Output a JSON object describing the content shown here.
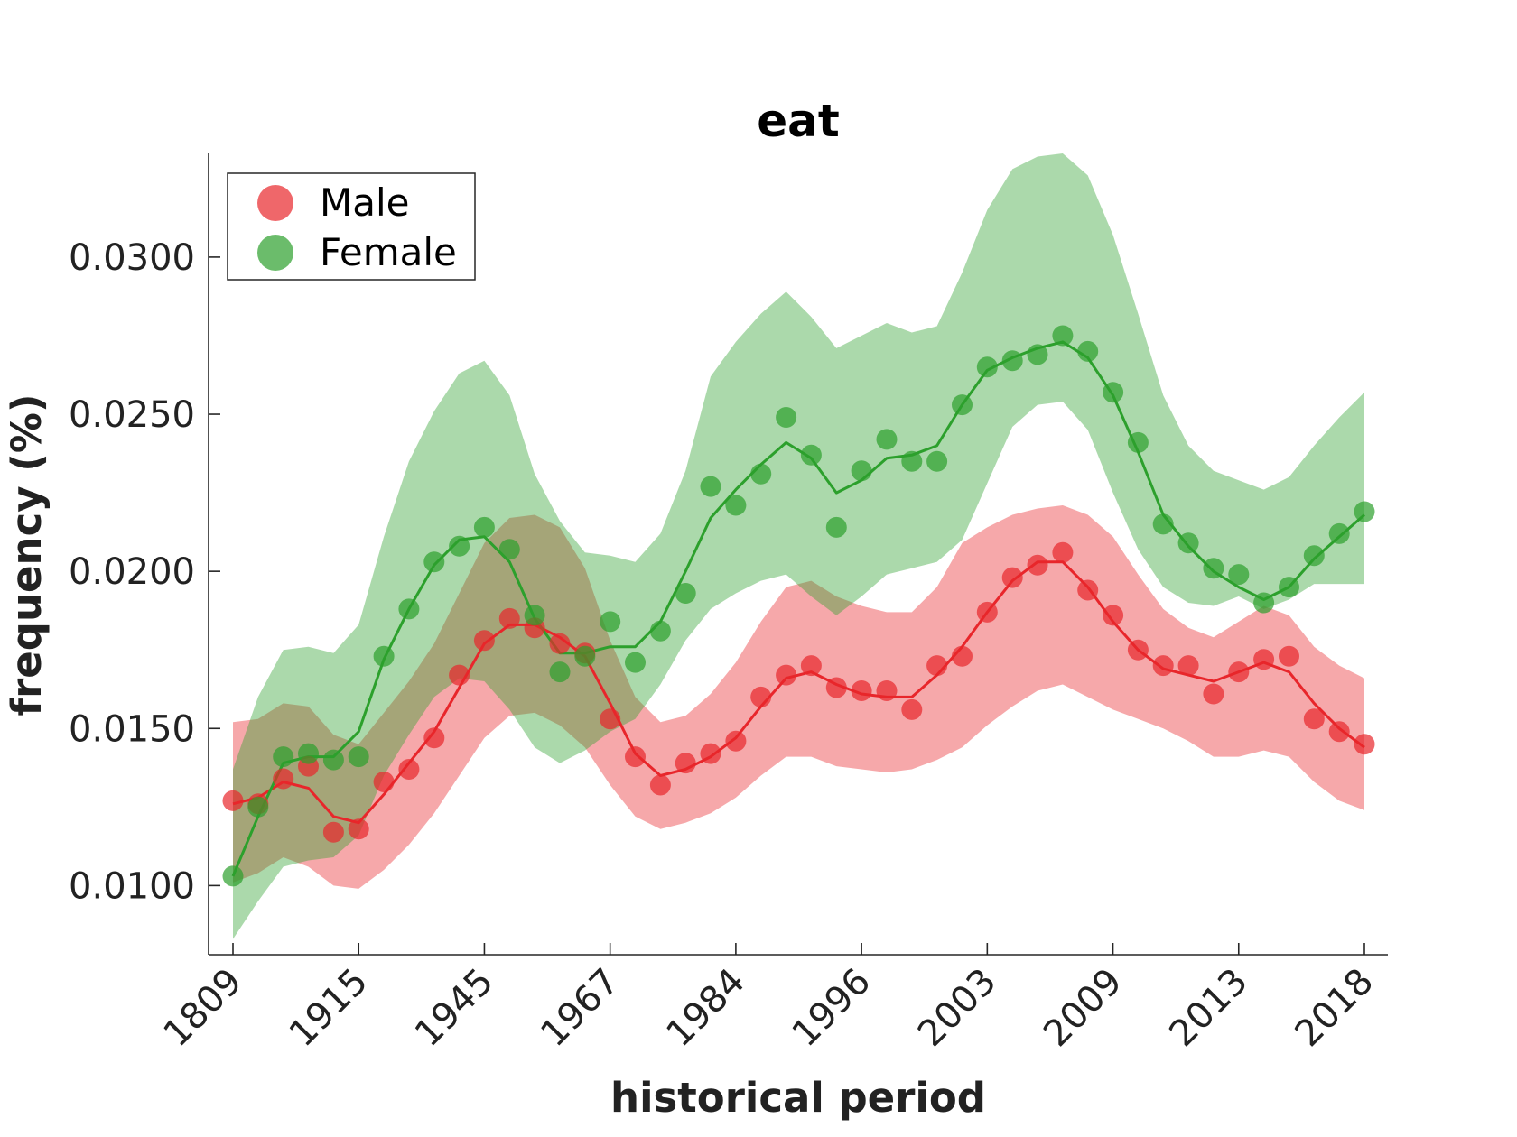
{
  "chart_data": {
    "type": "line",
    "title": "eat",
    "xlabel": "historical period",
    "ylabel": "frequency (%)",
    "x_tick_labels": [
      "1809",
      "1915",
      "1945",
      "1967",
      "1984",
      "1996",
      "2003",
      "2009",
      "2013",
      "2018"
    ],
    "y_tick_labels": [
      "0.0100",
      "0.0150",
      "0.0200",
      "0.0250",
      "0.0300"
    ],
    "y_ticks": [
      0.01,
      0.015,
      0.02,
      0.025,
      0.03
    ],
    "ylim": [
      0.0078,
      0.0333
    ],
    "x_index_range": [
      0,
      45
    ],
    "x_tick_indices": [
      0,
      5,
      10,
      15,
      20,
      25,
      30,
      35,
      40,
      45
    ],
    "legend_position": "top-left",
    "grid": false,
    "series": [
      {
        "name": "Male",
        "color": "#e8262b",
        "points": [
          0.0127,
          0.0126,
          0.0134,
          0.0138,
          0.0117,
          0.0118,
          0.0133,
          0.0137,
          0.0147,
          0.0167,
          0.0178,
          0.0185,
          0.0182,
          0.0177,
          0.0174,
          0.0153,
          0.0141,
          0.0132,
          0.0139,
          0.0142,
          0.0146,
          0.016,
          0.0167,
          0.017,
          0.0163,
          0.0162,
          0.0162,
          0.0156,
          0.017,
          0.0173,
          0.0187,
          0.0198,
          0.0202,
          0.0206,
          0.0194,
          0.0186,
          0.0175,
          0.017,
          0.017,
          0.0161,
          0.0168,
          0.0172,
          0.0173,
          0.0153,
          0.0149,
          0.0145
        ],
        "trend": [
          0.0126,
          0.0128,
          0.0133,
          0.0131,
          0.0122,
          0.012,
          0.0129,
          0.0139,
          0.0149,
          0.0163,
          0.0177,
          0.0183,
          0.0183,
          0.0179,
          0.0173,
          0.0158,
          0.0142,
          0.0135,
          0.0137,
          0.0141,
          0.0147,
          0.0157,
          0.0166,
          0.0168,
          0.0164,
          0.0161,
          0.016,
          0.016,
          0.0167,
          0.0176,
          0.0187,
          0.0197,
          0.0203,
          0.0203,
          0.0195,
          0.0184,
          0.0175,
          0.0169,
          0.0167,
          0.0165,
          0.0168,
          0.0171,
          0.0168,
          0.0158,
          0.015,
          0.0144
        ],
        "upper": [
          0.0152,
          0.0153,
          0.0158,
          0.0157,
          0.0148,
          0.0145,
          0.0155,
          0.0165,
          0.0177,
          0.0193,
          0.0209,
          0.0217,
          0.0218,
          0.0214,
          0.0201,
          0.0178,
          0.016,
          0.0152,
          0.0154,
          0.0161,
          0.0171,
          0.0184,
          0.0195,
          0.0197,
          0.0192,
          0.0189,
          0.0187,
          0.0187,
          0.0195,
          0.0209,
          0.0214,
          0.0218,
          0.022,
          0.0221,
          0.0218,
          0.0211,
          0.0199,
          0.0188,
          0.0182,
          0.0179,
          0.0184,
          0.0189,
          0.0186,
          0.0176,
          0.017,
          0.0166
        ],
        "lower": [
          0.0101,
          0.0104,
          0.0109,
          0.0106,
          0.01,
          0.0099,
          0.0105,
          0.0113,
          0.0123,
          0.0135,
          0.0147,
          0.0154,
          0.0155,
          0.0151,
          0.0144,
          0.0132,
          0.0122,
          0.0118,
          0.012,
          0.0123,
          0.0128,
          0.0135,
          0.0141,
          0.0141,
          0.0138,
          0.0137,
          0.0136,
          0.0137,
          0.014,
          0.0144,
          0.0151,
          0.0157,
          0.0162,
          0.0164,
          0.016,
          0.0156,
          0.0153,
          0.015,
          0.0146,
          0.0141,
          0.0141,
          0.0143,
          0.0141,
          0.0133,
          0.0127,
          0.0124
        ]
      },
      {
        "name": "Female",
        "color": "#2ca02c",
        "points": [
          0.0103,
          0.0125,
          0.0141,
          0.0142,
          0.014,
          0.0141,
          0.0173,
          0.0188,
          0.0203,
          0.0208,
          0.0214,
          0.0207,
          0.0186,
          0.0168,
          0.0173,
          0.0184,
          0.0171,
          0.0181,
          0.0193,
          0.0227,
          0.0221,
          0.0231,
          0.0249,
          0.0237,
          0.0214,
          0.0232,
          0.0242,
          0.0235,
          0.0235,
          0.0253,
          0.0265,
          0.0267,
          0.0269,
          0.0275,
          0.027,
          0.0257,
          0.0241,
          0.0215,
          0.0209,
          0.0201,
          0.0199,
          0.019,
          0.0195,
          0.0205,
          0.0212,
          0.0219
        ],
        "trend": [
          0.0103,
          0.0122,
          0.0139,
          0.0141,
          0.0141,
          0.0149,
          0.0172,
          0.0188,
          0.0202,
          0.021,
          0.0211,
          0.0203,
          0.0185,
          0.0174,
          0.0174,
          0.0176,
          0.0176,
          0.0184,
          0.02,
          0.0217,
          0.0226,
          0.0234,
          0.0241,
          0.0236,
          0.0225,
          0.0229,
          0.0236,
          0.0237,
          0.024,
          0.0253,
          0.0264,
          0.0268,
          0.0271,
          0.0273,
          0.0268,
          0.0256,
          0.0238,
          0.0218,
          0.0208,
          0.02,
          0.0195,
          0.0191,
          0.0195,
          0.0204,
          0.0211,
          0.0218
        ],
        "upper": [
          0.0137,
          0.016,
          0.0175,
          0.0176,
          0.0174,
          0.0183,
          0.0211,
          0.0235,
          0.0251,
          0.0263,
          0.0267,
          0.0256,
          0.0231,
          0.0216,
          0.0206,
          0.0205,
          0.0203,
          0.0212,
          0.0232,
          0.0262,
          0.0273,
          0.0282,
          0.0289,
          0.0281,
          0.0271,
          0.0275,
          0.0279,
          0.0276,
          0.0278,
          0.0295,
          0.0315,
          0.0328,
          0.0332,
          0.0333,
          0.0326,
          0.0307,
          0.0282,
          0.0256,
          0.024,
          0.0232,
          0.0229,
          0.0226,
          0.023,
          0.024,
          0.0249,
          0.0257
        ],
        "lower": [
          0.0083,
          0.0095,
          0.0106,
          0.0108,
          0.0109,
          0.0116,
          0.0135,
          0.0148,
          0.016,
          0.0166,
          0.0165,
          0.0156,
          0.0144,
          0.0139,
          0.0143,
          0.0149,
          0.0153,
          0.0164,
          0.0178,
          0.0188,
          0.0193,
          0.0197,
          0.0199,
          0.0192,
          0.0186,
          0.0192,
          0.0199,
          0.0201,
          0.0203,
          0.021,
          0.0228,
          0.0246,
          0.0253,
          0.0254,
          0.0245,
          0.0225,
          0.0207,
          0.0195,
          0.019,
          0.0189,
          0.0192,
          0.0188,
          0.0191,
          0.0196,
          0.0196,
          0.0196
        ]
      }
    ]
  }
}
